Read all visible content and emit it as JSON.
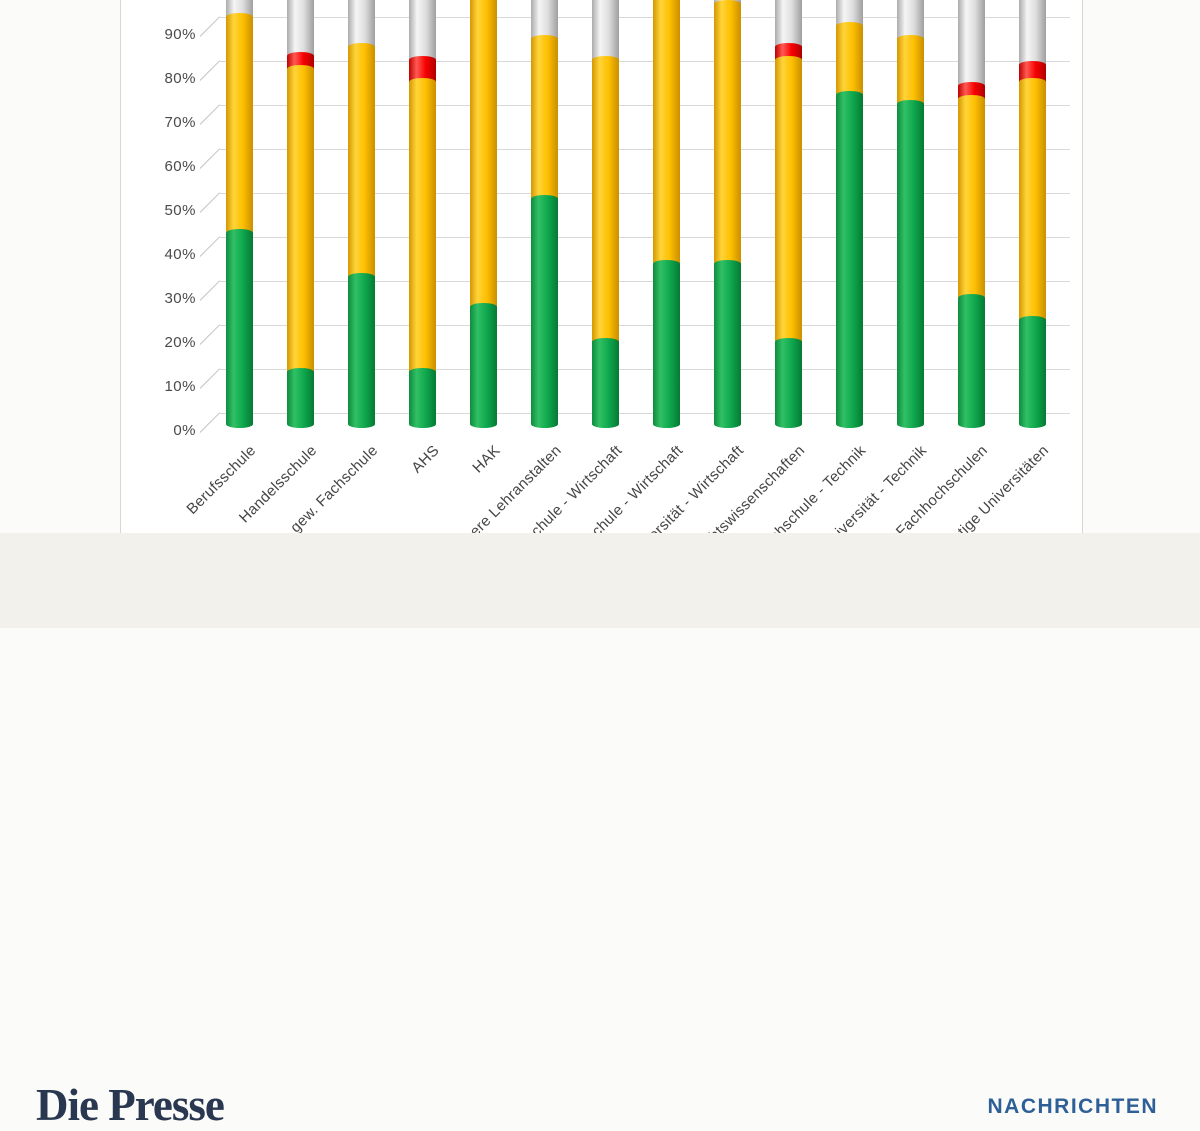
{
  "footer": {
    "logo_text": "Die Presse",
    "section_label": "NACHRICHTEN"
  },
  "colors": {
    "green": "#0ea24c",
    "yellow": "#fec100",
    "red": "#f40000",
    "gray": "#d8d8d8",
    "grid": "#d9d9d9",
    "axis_text": "#4a4a4a",
    "panel_border": "#d7d7d4",
    "footer_bg": "#f2f1eb",
    "logo_navy": "#293850",
    "section_blue": "#2e5f97"
  },
  "chart_data": {
    "type": "bar",
    "stacked": true,
    "bar_style": "cylinder-3d",
    "value_format": "percent",
    "grid": true,
    "legend_visible": false,
    "title": "",
    "xlabel": "",
    "ylabel": "",
    "y_ticks": [
      "0%",
      "10%",
      "20%",
      "30%",
      "40%",
      "50%",
      "60%",
      "70%",
      "80%",
      "90%"
    ],
    "y_axis_visible_range": [
      0,
      97
    ],
    "categories": [
      "Berufsschule",
      "Handelsschule",
      "gew. Fachschule",
      "AHS",
      "HAK",
      "höhere Lehranstalten",
      "Fachschule - Wirtschaft",
      "Fachhochschule - Wirtschaft",
      "Universität - Wirtschaft",
      "Rechtswissenschaften",
      "Fachhochschule - Technik",
      "Universität - Technik",
      "Fachhochschulen",
      "sonstige Universitäten"
    ],
    "series": [
      {
        "name": "green",
        "color": "#0ea24c",
        "values": [
          44,
          12,
          34,
          12,
          27,
          52,
          19,
          37,
          37,
          19,
          76,
          74,
          29,
          24
        ]
      },
      {
        "name": "yellow",
        "color": "#fec100",
        "values": [
          50,
          70,
          53,
          67,
          71,
          37,
          65,
          63,
          60,
          65,
          16,
          15,
          46,
          55
        ]
      },
      {
        "name": "red",
        "color": "#f40000",
        "values": [
          0,
          3,
          0,
          5,
          0,
          0,
          0,
          0,
          0,
          3,
          0,
          0,
          3,
          4
        ]
      },
      {
        "name": "gray",
        "color": "#d8d8d8",
        "values": [
          6,
          15,
          13,
          16,
          2,
          11,
          16,
          0,
          3,
          13,
          8,
          11,
          22,
          17
        ]
      }
    ]
  }
}
